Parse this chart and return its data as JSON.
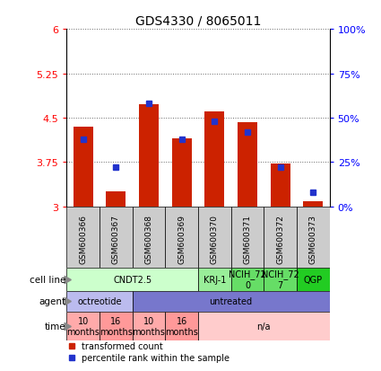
{
  "title": "GDS4330 / 8065011",
  "samples": [
    "GSM600366",
    "GSM600367",
    "GSM600368",
    "GSM600369",
    "GSM600370",
    "GSM600371",
    "GSM600372",
    "GSM600373"
  ],
  "bar_values": [
    4.35,
    3.25,
    4.72,
    4.15,
    4.6,
    4.42,
    3.72,
    3.08
  ],
  "percentile_values": [
    38,
    22,
    58,
    38,
    48,
    42,
    22,
    8
  ],
  "bar_color": "#CC2200",
  "percentile_color": "#2233CC",
  "ylim_left": [
    3.0,
    6.0
  ],
  "ylim_right": [
    0,
    100
  ],
  "yticks_left": [
    3.0,
    3.75,
    4.5,
    5.25,
    6.0
  ],
  "yticks_right": [
    0,
    25,
    50,
    75,
    100
  ],
  "ytick_labels_left": [
    "3",
    "3.75",
    "4.5",
    "5.25",
    "6"
  ],
  "ytick_labels_right": [
    "0%",
    "25%",
    "50%",
    "75%",
    "100%"
  ],
  "cell_line_groups": [
    {
      "label": "CNDT2.5",
      "start": 0,
      "end": 4,
      "color": "#CCFFCC"
    },
    {
      "label": "KRJ-1",
      "start": 4,
      "end": 5,
      "color": "#99EE99"
    },
    {
      "label": "NCIH_72\n0",
      "start": 5,
      "end": 6,
      "color": "#66DD66"
    },
    {
      "label": "NCIH_72\n7",
      "start": 6,
      "end": 7,
      "color": "#66DD66"
    },
    {
      "label": "QGP",
      "start": 7,
      "end": 8,
      "color": "#22CC22"
    }
  ],
  "agent_groups": [
    {
      "label": "octreotide",
      "start": 0,
      "end": 2,
      "color": "#BBBBEE"
    },
    {
      "label": "untreated",
      "start": 2,
      "end": 8,
      "color": "#7777CC"
    }
  ],
  "time_groups": [
    {
      "label": "10\nmonths",
      "start": 0,
      "end": 1,
      "color": "#FFAAAA"
    },
    {
      "label": "16\nmonths",
      "start": 1,
      "end": 2,
      "color": "#FF9999"
    },
    {
      "label": "10\nmonths",
      "start": 2,
      "end": 3,
      "color": "#FFAAAA"
    },
    {
      "label": "16\nmonths",
      "start": 3,
      "end": 4,
      "color": "#FF9999"
    },
    {
      "label": "n/a",
      "start": 4,
      "end": 8,
      "color": "#FFCCCC"
    }
  ],
  "legend_items": [
    {
      "label": "transformed count",
      "color": "#CC2200"
    },
    {
      "label": "percentile rank within the sample",
      "color": "#2233CC"
    }
  ],
  "bar_width": 0.6,
  "sample_box_color": "#CCCCCC"
}
